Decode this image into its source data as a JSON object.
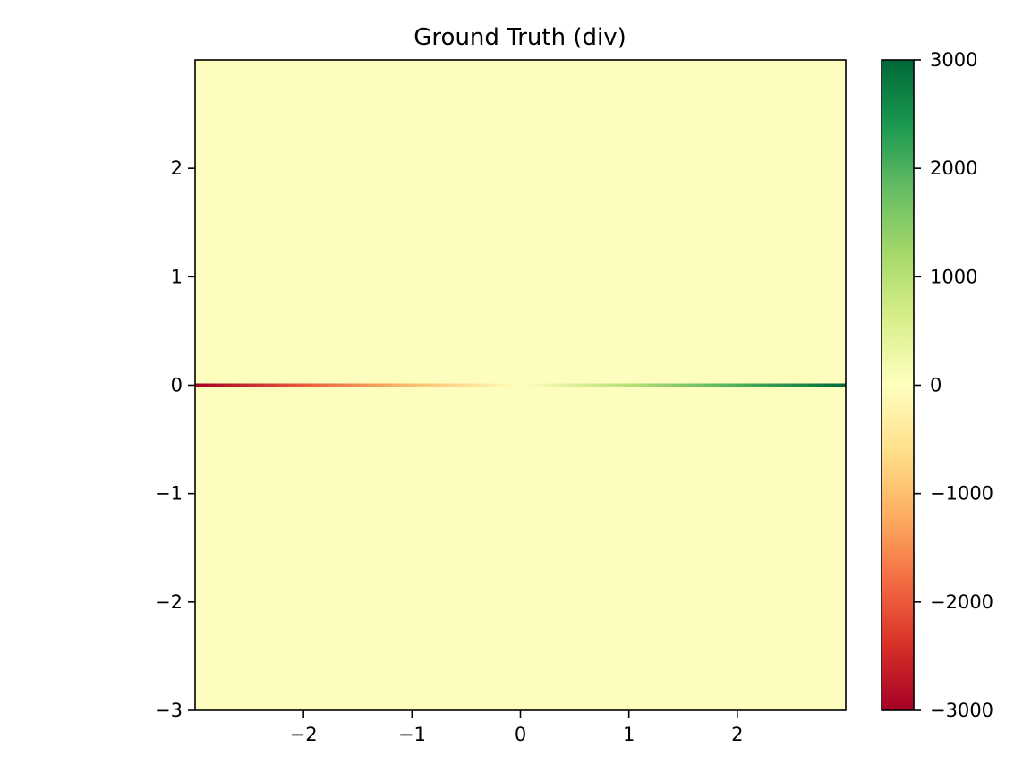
{
  "chart_data": {
    "type": "heatmap",
    "title": "Ground Truth (div)",
    "xlabel": "",
    "ylabel": "",
    "xlim": [
      -3,
      3
    ],
    "ylim": [
      -3,
      3
    ],
    "x_ticks": [
      -2,
      -1,
      0,
      1,
      2
    ],
    "x_tick_labels": [
      "−2",
      "−1",
      "0",
      "1",
      "2"
    ],
    "y_ticks": [
      -3,
      -2,
      -1,
      0,
      1,
      2
    ],
    "y_tick_labels": [
      "−3",
      "−2",
      "−1",
      "0",
      "1",
      "2"
    ],
    "grid": false,
    "field": {
      "description_values": "value ≈ 0 everywhere except along y = 0, where value grows linearly with x",
      "background_value": 0,
      "line_y": 0,
      "line_values": [
        {
          "x": -3,
          "value": -3000
        },
        {
          "x": -2,
          "value": -2000
        },
        {
          "x": -1,
          "value": -1000
        },
        {
          "x": 0,
          "value": 0
        },
        {
          "x": 1,
          "value": 1000
        },
        {
          "x": 2,
          "value": 2000
        },
        {
          "x": 3,
          "value": 3000
        }
      ]
    },
    "colorbar": {
      "colormap": "RdYlGn",
      "range": [
        -3000,
        3000
      ],
      "ticks": [
        -3000,
        -2000,
        -1000,
        0,
        1000,
        2000,
        3000
      ],
      "tick_labels": [
        "−3000",
        "−2000",
        "−1000",
        "0",
        "1000",
        "2000",
        "3000"
      ],
      "colors": [
        "#a50026",
        "#d73027",
        "#f46d43",
        "#fdae61",
        "#fee08b",
        "#ffffbf",
        "#d9ef8b",
        "#a6d96a",
        "#66bd63",
        "#1a9850",
        "#006837"
      ]
    },
    "background_color": "#fdfebd"
  }
}
